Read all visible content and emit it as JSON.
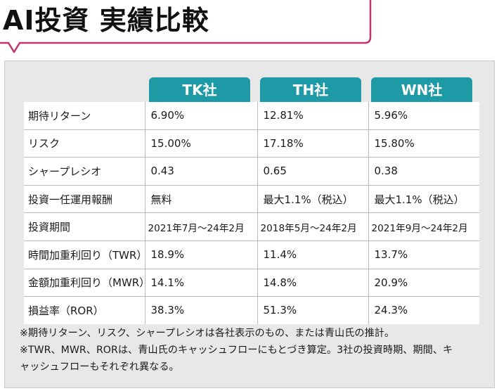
{
  "title": "AI投資 実績比較",
  "columns": [
    "TK社",
    "TH社",
    "WN社"
  ],
  "rows": [
    {
      "label": "期待リターン",
      "values": [
        "6.90%",
        "12.81%",
        "5.96%"
      ]
    },
    {
      "label": "リスク",
      "values": [
        "15.00%",
        "17.18%",
        "15.80%"
      ]
    },
    {
      "label": "シャープレシオ",
      "values": [
        "0.43",
        "0.65",
        "0.38"
      ]
    },
    {
      "label": "投資一任運用報酬",
      "values": [
        "無料",
        "最大1.1%（税込）",
        "最大1.1%（税込）"
      ]
    },
    {
      "label": "投資期間",
      "values": [
        "2021年7月～24年2月",
        "2018年5月～24年2月",
        "2021年9月～24年2月"
      ]
    },
    {
      "label": "時間加重利回り（TWR）",
      "values": [
        "18.9%",
        "11.4%",
        "13.7%"
      ]
    },
    {
      "label": "金額加重利回り（MWR）",
      "values": [
        "14.1%",
        "14.8%",
        "20.9%"
      ]
    },
    {
      "label": "損益率（ROR）",
      "values": [
        "38.3%",
        "51.3%",
        "24.3%"
      ]
    }
  ],
  "notes": [
    "※期待リターン、リスク、シャープレシオは各社表示のもの、または青山氏の推計。",
    "※TWR、MWR、RORは、青山氏のキャッシュフローにもとづき算定。3社の投資時期、期間、キ",
    "ャッシュフローもそれぞれ異なる。"
  ],
  "colors": {
    "accent_teal": "#1e9aa6",
    "frame_pink": "#c0356e",
    "panel_gray": "#e8e8e8"
  }
}
